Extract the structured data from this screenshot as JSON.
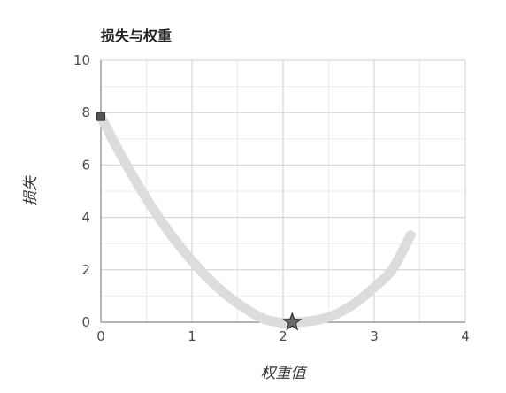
{
  "chart_data": {
    "type": "line",
    "title": "损失与权重",
    "xlabel": "权重值",
    "ylabel": "损失",
    "xlim": [
      0,
      4
    ],
    "ylim": [
      0,
      10
    ],
    "x_ticks": [
      "0",
      "1",
      "2",
      "3",
      "4"
    ],
    "y_ticks": [
      "0",
      "2",
      "4",
      "6",
      "8",
      "10"
    ],
    "grid": true,
    "minor_grid": true,
    "series": [
      {
        "type": "curve",
        "color": "#dcdcdc",
        "x": [
          0,
          0.2,
          0.4,
          0.6,
          0.8,
          1.0,
          1.2,
          1.4,
          1.6,
          1.8,
          2.0,
          2.1,
          2.2,
          2.4,
          2.6,
          2.8,
          3.0,
          3.2,
          3.4
        ],
        "y": [
          7.85,
          6.51,
          5.29,
          4.18,
          3.2,
          2.34,
          1.6,
          0.98,
          0.49,
          0.11,
          -0.02,
          0.0,
          0.01,
          0.1,
          0.34,
          0.75,
          1.33,
          2.02,
          3.32
        ]
      }
    ],
    "markers": [
      {
        "shape": "square",
        "x": 0,
        "y": 7.85,
        "color": "#555555"
      },
      {
        "shape": "star",
        "x": 2.1,
        "y": 0.0,
        "color": "#555555"
      }
    ]
  },
  "colors": {
    "grid_major": "#cfcfcf",
    "grid_minor": "#ececec",
    "axis": "#888888",
    "curve": "#dcdcdc",
    "marker": "#555555"
  }
}
